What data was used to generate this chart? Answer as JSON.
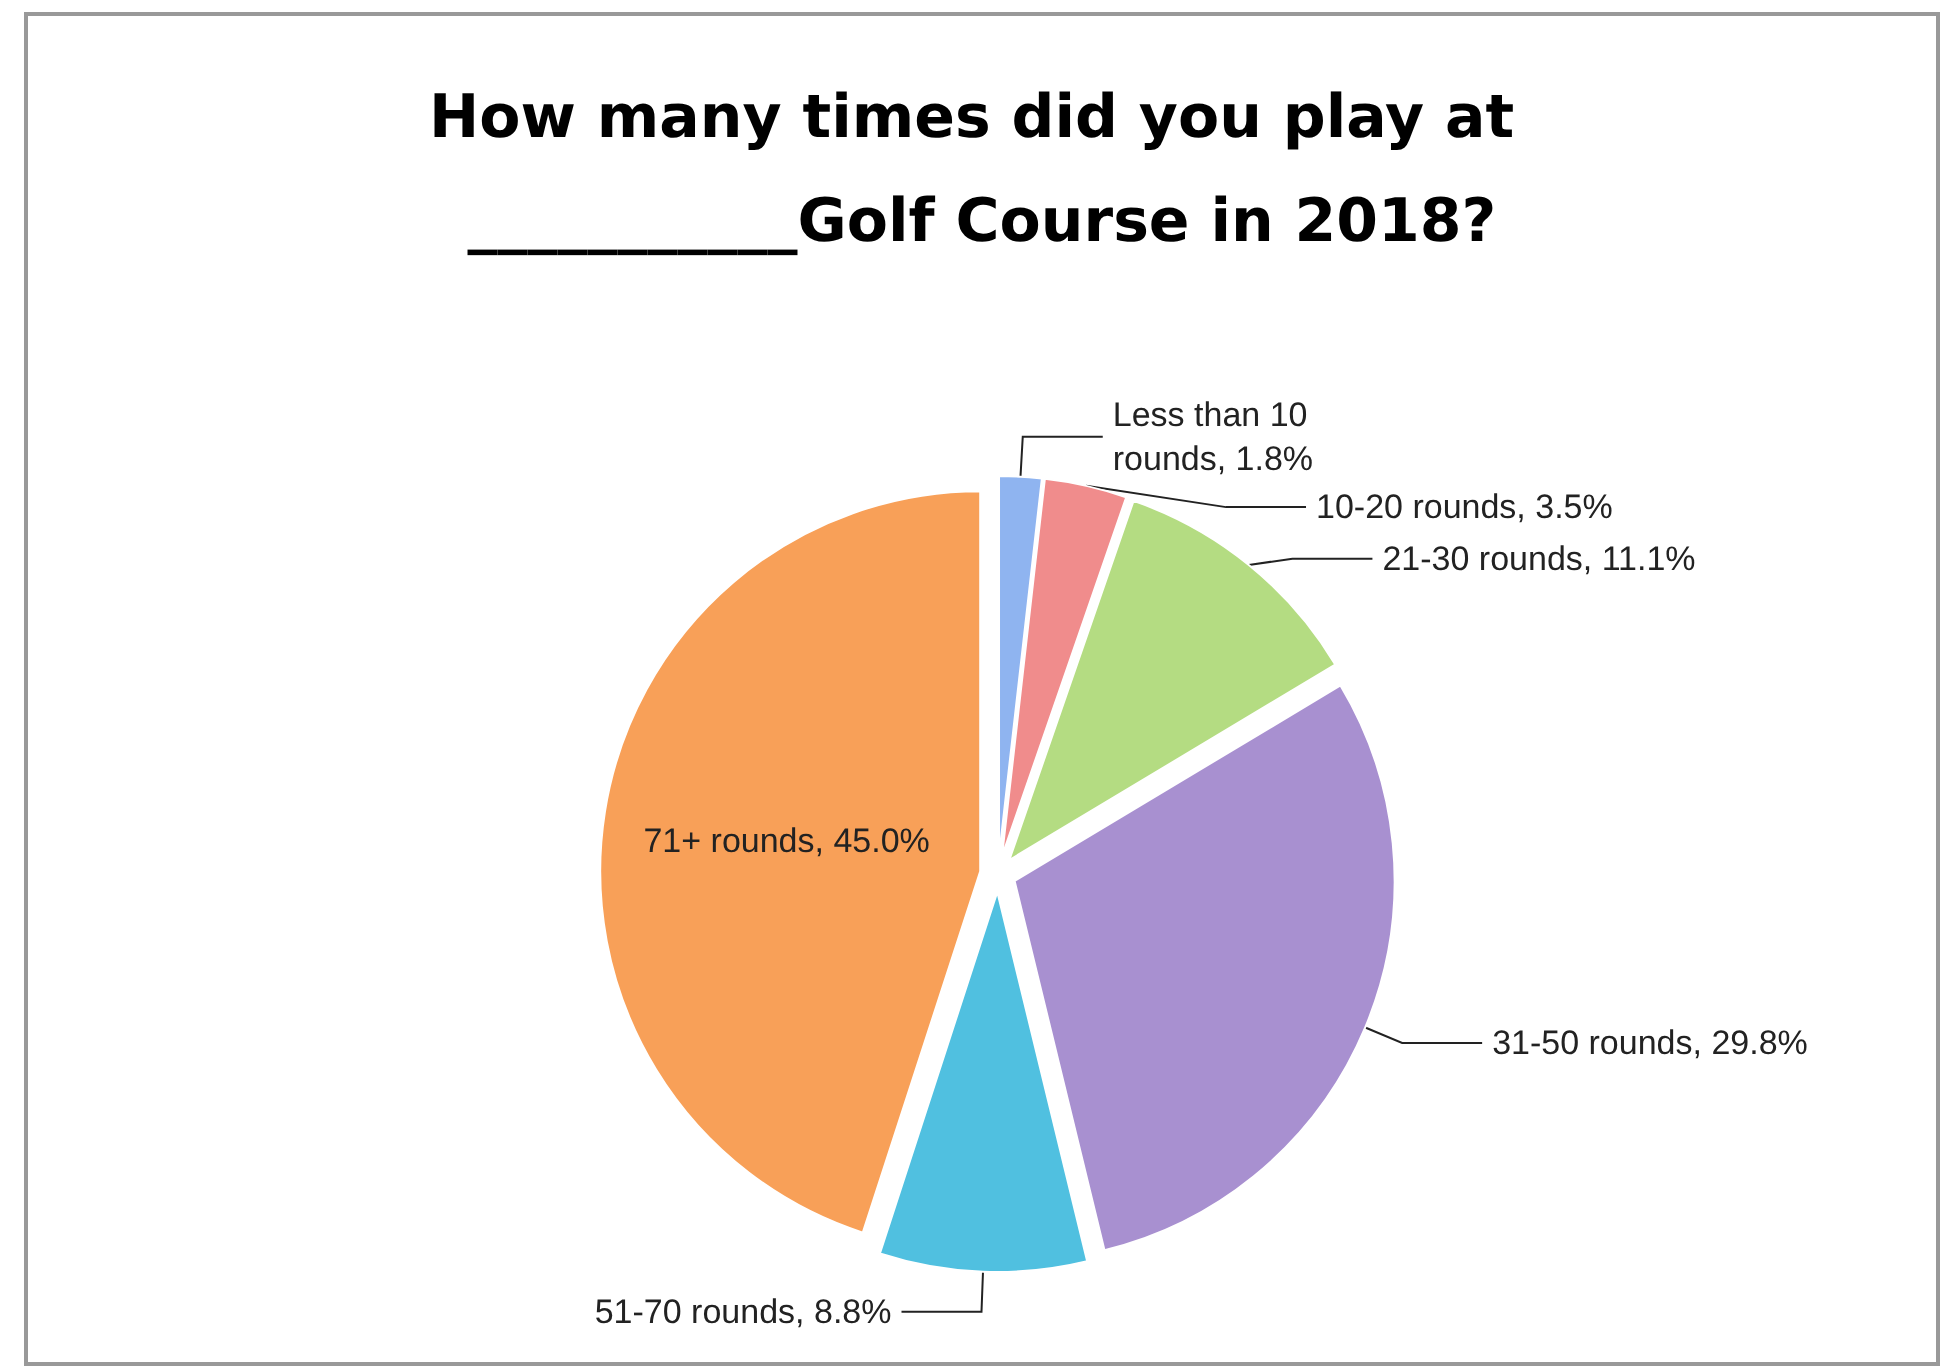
{
  "chart_data": {
    "type": "pie",
    "title": "How many times did you play at ___________Golf Course in 2018?",
    "categories": [
      "Less than 10 rounds",
      "10-20 rounds",
      "21-30 rounds",
      "31-50 rounds",
      "51-70 rounds",
      "71+ rounds"
    ],
    "values": [
      1.8,
      3.5,
      11.1,
      29.8,
      8.8,
      45.0
    ],
    "value_labels": [
      "1.8%",
      "3.5%",
      "11.1%",
      "29.8%",
      "8.8%",
      "45.0%"
    ],
    "colors": [
      "#8fb4f0",
      "#f08c8c",
      "#b4dc82",
      "#a890d0",
      "#50c0e0",
      "#f8a058"
    ],
    "legend": false
  }
}
